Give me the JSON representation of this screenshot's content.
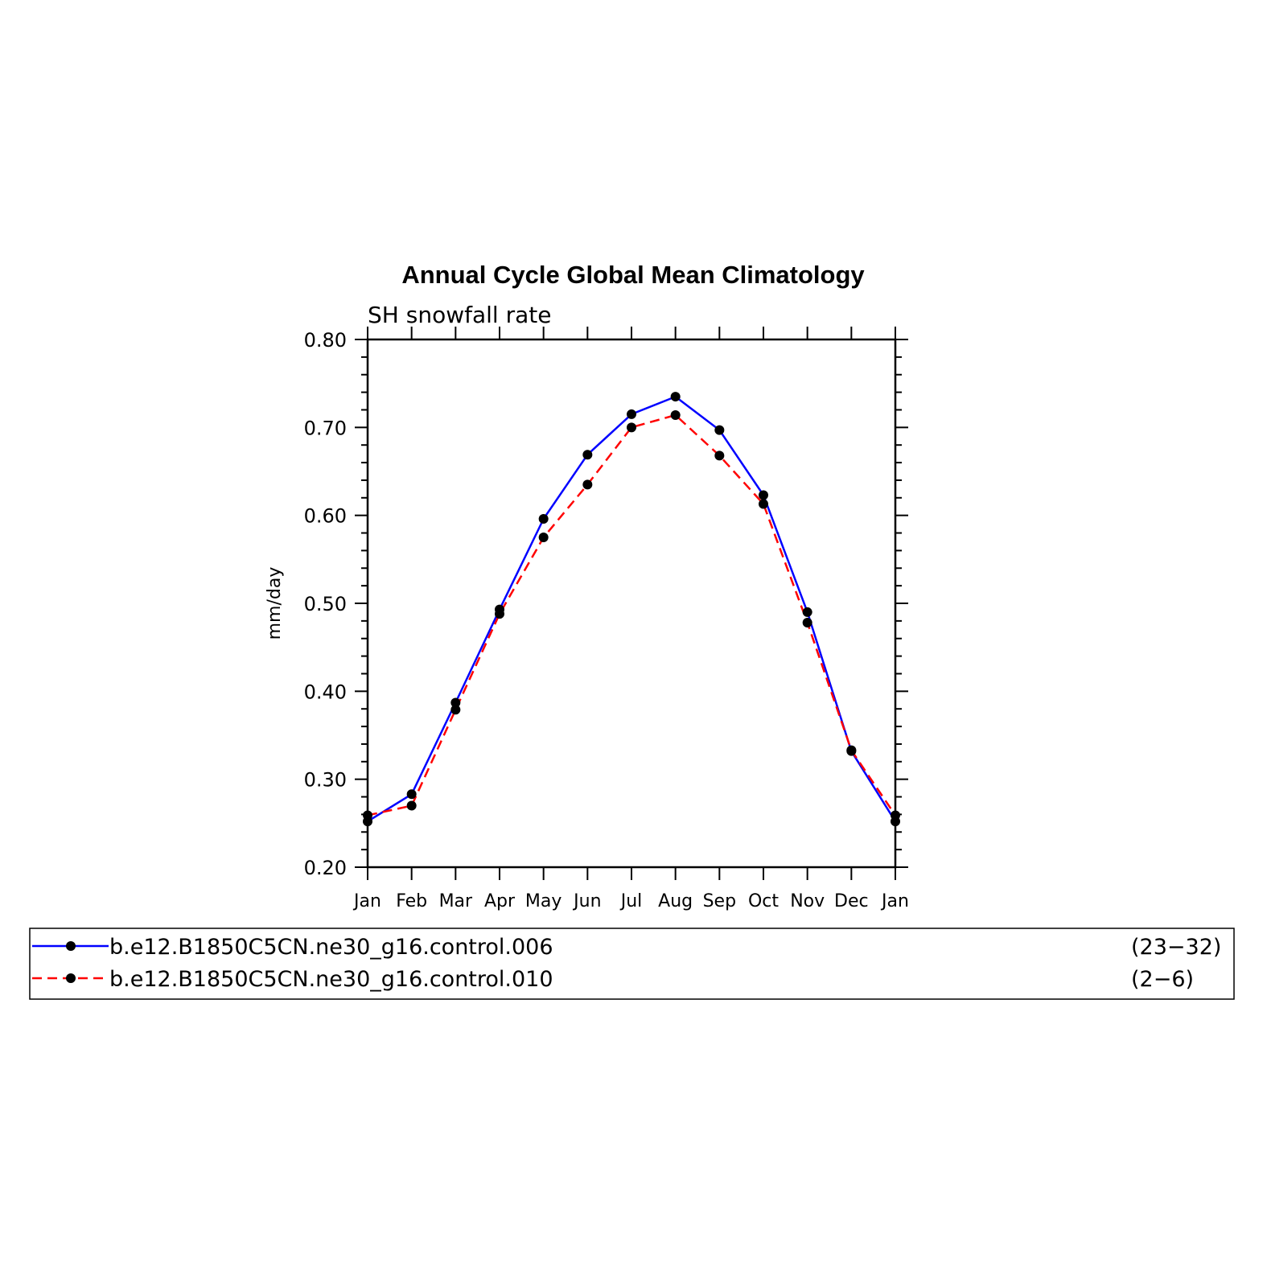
{
  "chart_data": {
    "type": "line",
    "title": "Annual Cycle Global Mean Climatology",
    "subtitle": "SH snowfall rate",
    "ylabel": "mm/day",
    "xlabel": "",
    "categories": [
      "Jan",
      "Feb",
      "Mar",
      "Apr",
      "May",
      "Jun",
      "Jul",
      "Aug",
      "Sep",
      "Oct",
      "Nov",
      "Dec",
      "Jan"
    ],
    "ylim": [
      0.2,
      0.8
    ],
    "yticks": [
      "0.20",
      "0.30",
      "0.40",
      "0.50",
      "0.60",
      "0.70",
      "0.80"
    ],
    "grid": false,
    "legend_position": "bottom",
    "series": [
      {
        "name": "b.e12.B1850C5CN.ne30_g16.control.006",
        "years": "(23−32)",
        "color": "#0000ff",
        "dash": "solid",
        "values": [
          0.252,
          0.283,
          0.387,
          0.493,
          0.596,
          0.669,
          0.715,
          0.735,
          0.697,
          0.623,
          0.49,
          0.332,
          0.252
        ]
      },
      {
        "name": "b.e12.B1850C5CN.ne30_g16.control.010",
        "years": "(2−6)",
        "color": "#ff0000",
        "dash": "dashed",
        "values": [
          0.259,
          0.27,
          0.379,
          0.488,
          0.575,
          0.635,
          0.7,
          0.714,
          0.668,
          0.613,
          0.478,
          0.333,
          0.259
        ]
      }
    ]
  }
}
